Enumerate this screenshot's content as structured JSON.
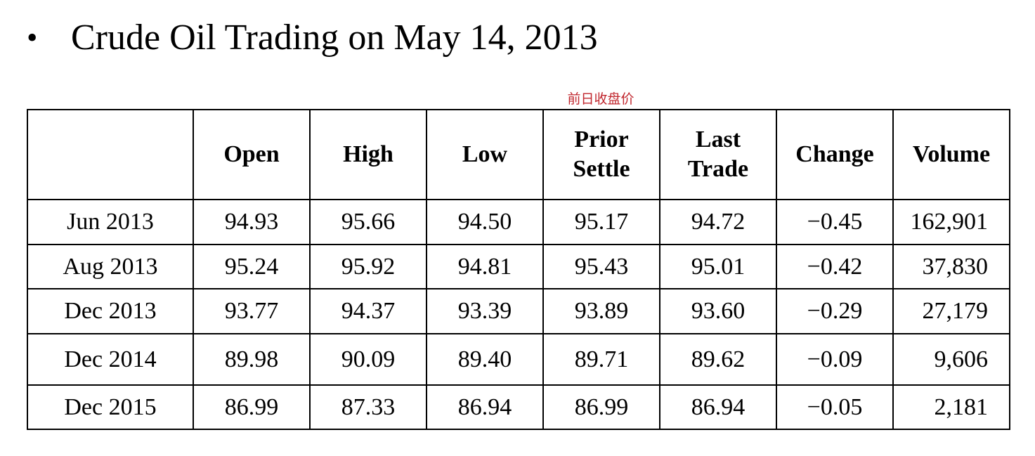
{
  "title": "Crude Oil Trading on May 14, 2013",
  "bullet": "•",
  "annotation": "前日收盘价",
  "table": {
    "headers": [
      "",
      "Open",
      "High",
      "Low",
      "Prior Settle",
      "Last Trade",
      "Change",
      "Volume"
    ],
    "header_lines": {
      "prior_settle": [
        "Prior",
        "Settle"
      ],
      "last_trade": [
        "Last",
        "Trade"
      ]
    },
    "rows": [
      {
        "contract": "Jun 2013",
        "open": "94.93",
        "high": "95.66",
        "low": "94.50",
        "prior_settle": "95.17",
        "last_trade": "94.72",
        "change": "−0.45",
        "volume": "162,901"
      },
      {
        "contract": "Aug 2013",
        "open": "95.24",
        "high": "95.92",
        "low": "94.81",
        "prior_settle": "95.43",
        "last_trade": "95.01",
        "change": "−0.42",
        "volume": "37,830"
      },
      {
        "contract": "Dec 2013",
        "open": "93.77",
        "high": "94.37",
        "low": "93.39",
        "prior_settle": "93.89",
        "last_trade": "93.60",
        "change": "−0.29",
        "volume": "27,179"
      },
      {
        "contract": "Dec 2014",
        "open": "89.98",
        "high": "90.09",
        "low": "89.40",
        "prior_settle": "89.71",
        "last_trade": "89.62",
        "change": "−0.09",
        "volume": "9,606"
      },
      {
        "contract": "Dec 2015",
        "open": "86.99",
        "high": "87.33",
        "low": "86.94",
        "prior_settle": "86.99",
        "last_trade": "86.94",
        "change": "−0.05",
        "volume": "2,181"
      }
    ]
  },
  "colors": {
    "annotation": "#c0262d",
    "text": "#000000",
    "border": "#000000",
    "background": "#ffffff"
  }
}
